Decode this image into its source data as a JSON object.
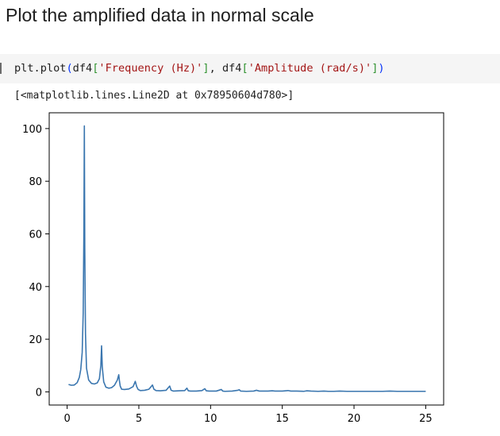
{
  "heading": "Plot the amplified data in normal scale",
  "code": {
    "prefix": "plt.plot",
    "open_paren": "(",
    "arg1_obj": "df4",
    "arg1_open": "[",
    "arg1_key": "'Frequency (Hz)'",
    "arg1_close": "]",
    "separator": ", ",
    "arg2_obj": "df4",
    "arg2_open": "[",
    "arg2_key": "'Amplitude (rad/s)'",
    "arg2_close": "]",
    "close_paren": ")"
  },
  "output": {
    "repr": "[<matplotlib.lines.Line2D at 0x78950604d780>]"
  },
  "colors": {
    "line": "#3a76af",
    "cell_bg": "#f5f5f5",
    "string": "#a31515",
    "bracket_outer": "#0431fa",
    "bracket_inner": "#319331"
  },
  "chart_data": {
    "type": "line",
    "xlabel": "",
    "ylabel": "",
    "xlim": [
      -1.25,
      26.25
    ],
    "ylim": [
      -5,
      106
    ],
    "x_ticks": [
      0,
      5,
      10,
      15,
      20,
      25
    ],
    "y_ticks": [
      0,
      20,
      40,
      60,
      80,
      100
    ],
    "grid": false,
    "legend": "none",
    "series": [
      {
        "x": [
          0.1,
          0.3,
          0.5,
          0.7,
          0.85,
          0.95,
          1.05,
          1.12,
          1.17,
          1.2,
          1.23,
          1.28,
          1.35,
          1.5,
          1.7,
          1.9,
          2.1,
          2.25,
          2.35,
          2.4,
          2.45,
          2.55,
          2.7,
          2.9,
          3.1,
          3.3,
          3.5,
          3.6,
          3.65,
          3.7,
          3.8,
          4.0,
          4.3,
          4.6,
          4.75,
          4.85,
          4.95,
          5.1,
          5.4,
          5.7,
          5.95,
          6.05,
          6.2,
          6.5,
          6.9,
          7.15,
          7.25,
          7.4,
          7.8,
          8.2,
          8.35,
          8.45,
          8.6,
          9.0,
          9.4,
          9.6,
          9.7,
          9.9,
          10.4,
          10.75,
          10.85,
          11.0,
          11.5,
          11.9,
          12.0,
          12.1,
          12.5,
          13.0,
          13.2,
          13.4,
          14.0,
          14.3,
          14.5,
          15.0,
          15.4,
          15.6,
          16.0,
          16.5,
          16.7,
          17.0,
          17.5,
          17.9,
          18.2,
          18.6,
          19.0,
          19.5,
          20.0,
          20.5,
          21.0,
          21.5,
          22.0,
          22.5,
          23.0,
          23.5,
          24.0,
          24.5,
          25.0
        ],
        "y": [
          2.8,
          2.5,
          2.6,
          3.5,
          5.5,
          8.5,
          15.0,
          30.0,
          62.0,
          101.0,
          55.0,
          22.0,
          9.0,
          4.5,
          3.2,
          3.0,
          3.4,
          5.0,
          10.0,
          17.5,
          9.5,
          3.8,
          1.8,
          1.4,
          1.6,
          2.5,
          4.5,
          6.5,
          4.0,
          2.2,
          1.0,
          0.9,
          1.1,
          2.0,
          4.0,
          2.0,
          0.9,
          0.5,
          0.6,
          1.0,
          2.6,
          1.0,
          0.5,
          0.4,
          0.6,
          2.2,
          0.6,
          0.3,
          0.4,
          0.5,
          1.4,
          0.4,
          0.3,
          0.3,
          0.5,
          1.2,
          0.4,
          0.3,
          0.3,
          0.9,
          0.3,
          0.2,
          0.3,
          0.6,
          0.8,
          0.3,
          0.2,
          0.3,
          0.6,
          0.3,
          0.3,
          0.4,
          0.3,
          0.3,
          0.5,
          0.3,
          0.3,
          0.2,
          0.4,
          0.3,
          0.2,
          0.3,
          0.2,
          0.2,
          0.3,
          0.2,
          0.2,
          0.2,
          0.2,
          0.2,
          0.2,
          0.3,
          0.2,
          0.2,
          0.2,
          0.2,
          0.2
        ]
      }
    ]
  }
}
